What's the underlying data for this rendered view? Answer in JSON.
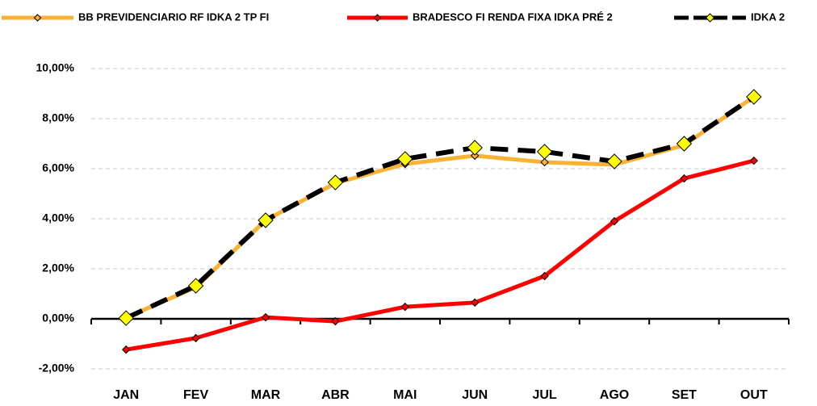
{
  "chart_data": {
    "type": "line",
    "categories": [
      "JAN",
      "FEV",
      "MAR",
      "ABR",
      "MAI",
      "JUN",
      "JUL",
      "AGO",
      "SET",
      "OUT"
    ],
    "series": [
      {
        "name": "BB PREVIDENCIARIO RF IDKA 2 TP FI",
        "color": "#f9b233",
        "values": [
          0.05,
          1.26,
          3.94,
          5.42,
          6.19,
          6.52,
          6.26,
          6.16,
          6.94,
          8.87
        ]
      },
      {
        "name": "BRADESCO FI RENDA FIXA IDKA PRÉ 2",
        "color": "#ff0000",
        "values": [
          -1.23,
          -0.77,
          0.06,
          -0.1,
          0.48,
          0.65,
          1.71,
          3.9,
          5.61,
          6.32
        ]
      },
      {
        "name": "IDKA 2",
        "color": "#000000",
        "values": [
          0.03,
          1.32,
          3.94,
          5.45,
          6.39,
          6.84,
          6.68,
          6.29,
          7.0,
          8.87
        ]
      }
    ],
    "ylim": [
      -2,
      10
    ],
    "yticks": [
      {
        "value": -2,
        "label": "-2,00%"
      },
      {
        "value": 0,
        "label": "0,00%"
      },
      {
        "value": 2,
        "label": "2,00%"
      },
      {
        "value": 4,
        "label": "4,00%"
      },
      {
        "value": 6,
        "label": "6,00%"
      },
      {
        "value": 8,
        "label": "8,00%"
      },
      {
        "value": 10,
        "label": "10,00%"
      }
    ],
    "grid": true,
    "legend": "top"
  }
}
